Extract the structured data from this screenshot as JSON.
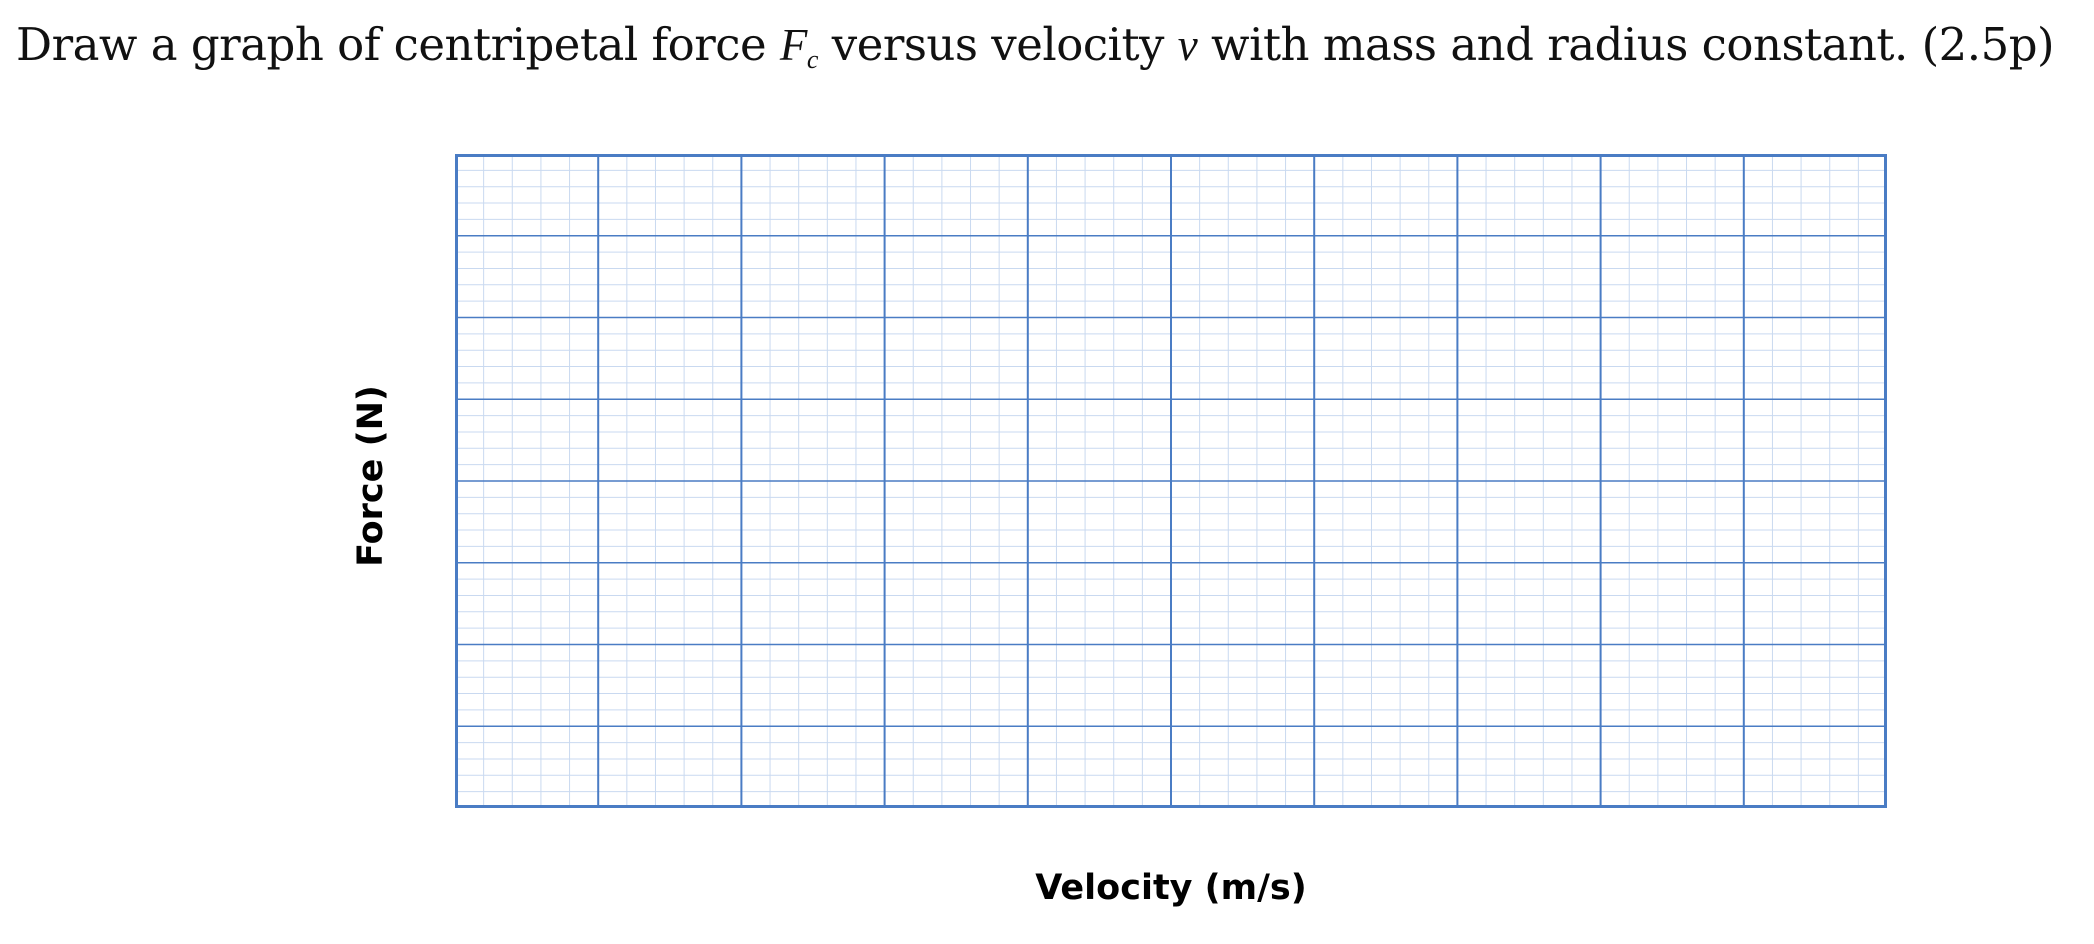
{
  "question": {
    "prefix": "Draw a graph of centripetal force ",
    "force_symbol": "F",
    "force_subscript": "c",
    "middle": " versus velocity ",
    "velocity_symbol": "v",
    "suffix": " with mass and radius constant. (2.5p)"
  },
  "graph": {
    "ylabel": "Force (N)",
    "xlabel": "Velocity (m/s)",
    "grid_color": "#4a7cc4",
    "minor_grid_color": "#c9d9f0"
  }
}
